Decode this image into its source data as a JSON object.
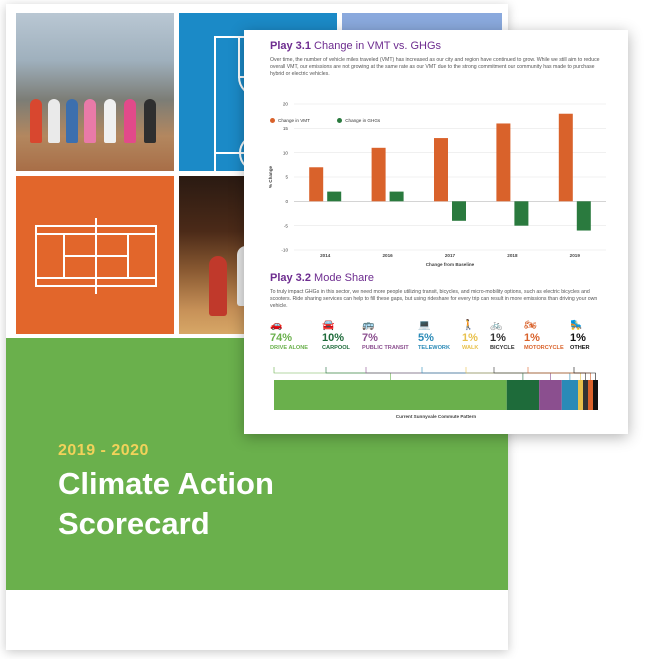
{
  "cover": {
    "year": "2019 - 2020",
    "title": "Climate Action Scorecard"
  },
  "play31": {
    "number": "Play 3.1",
    "title": "Change in VMT vs. GHGs",
    "description": "Over time, the number of vehicle miles traveled (VMT) has increased as our city and region have continued to grow. While we still aim to reduce overall VMT, our emissions are not growing at the same rate as our VMT due to the strong commitment our community has made to purchase hybrid or electric vehicles."
  },
  "chart_data": {
    "type": "bar",
    "categories": [
      "2014",
      "2016",
      "2017",
      "2018",
      "2019"
    ],
    "series": [
      {
        "name": "Change in VMT",
        "color": "#d9622b",
        "values": [
          7,
          11,
          13,
          16,
          18
        ]
      },
      {
        "name": "Change in GHGs",
        "color": "#2a7a3e",
        "values": [
          2,
          2,
          -4,
          -5,
          -6
        ]
      }
    ],
    "ylabel": "% Change",
    "xlabel": "Change from Baseline",
    "ylim": [
      -10,
      20
    ],
    "yticks": [
      20,
      15,
      10,
      5,
      0,
      -5,
      -10
    ],
    "grid": true,
    "legend": "top-left"
  },
  "play32": {
    "number": "Play 3.2",
    "title": "Mode Share",
    "description": "To truly impact GHGs in this sector, we need more people utilizing transit, bicycles, and micro-mobility options, such as electric bicycles and scooters. Ride sharing services can help to fill these gaps, but using rideshare for every trip can result in more emissions than driving your own vehicle.",
    "modes": [
      {
        "pct": "74%",
        "label": "DRIVE ALONE",
        "color": "#6ab04c",
        "icon": "car-icon",
        "glyph": "🚗",
        "share": 74
      },
      {
        "pct": "10%",
        "label": "CARPOOL",
        "color": "#1e6b3a",
        "icon": "carpool-icon",
        "glyph": "🚘",
        "share": 10
      },
      {
        "pct": "7%",
        "label": "PUBLIC TRANSIT",
        "color": "#8b4f8f",
        "icon": "bus-icon",
        "glyph": "🚌",
        "share": 7
      },
      {
        "pct": "5%",
        "label": "TELEWORK",
        "color": "#2a8ab7",
        "icon": "telework-icon",
        "glyph": "💻",
        "share": 5
      },
      {
        "pct": "1%",
        "label": "WALK",
        "color": "#e8c14c",
        "icon": "walk-icon",
        "glyph": "🚶",
        "share": 1
      },
      {
        "pct": "1%",
        "label": "BICYCLE",
        "color": "#333333",
        "icon": "bicycle-icon",
        "glyph": "🚲",
        "share": 1
      },
      {
        "pct": "1%",
        "label": "MOTORCYCLE",
        "color": "#d9622b",
        "icon": "motorcycle-icon",
        "glyph": "🏍",
        "share": 1
      },
      {
        "pct": "1%",
        "label": "OTHER",
        "color": "#111111",
        "icon": "other-icon",
        "glyph": "🛼",
        "share": 1
      }
    ],
    "bar_caption": "Current Sunnyvale Commute Pattern"
  }
}
